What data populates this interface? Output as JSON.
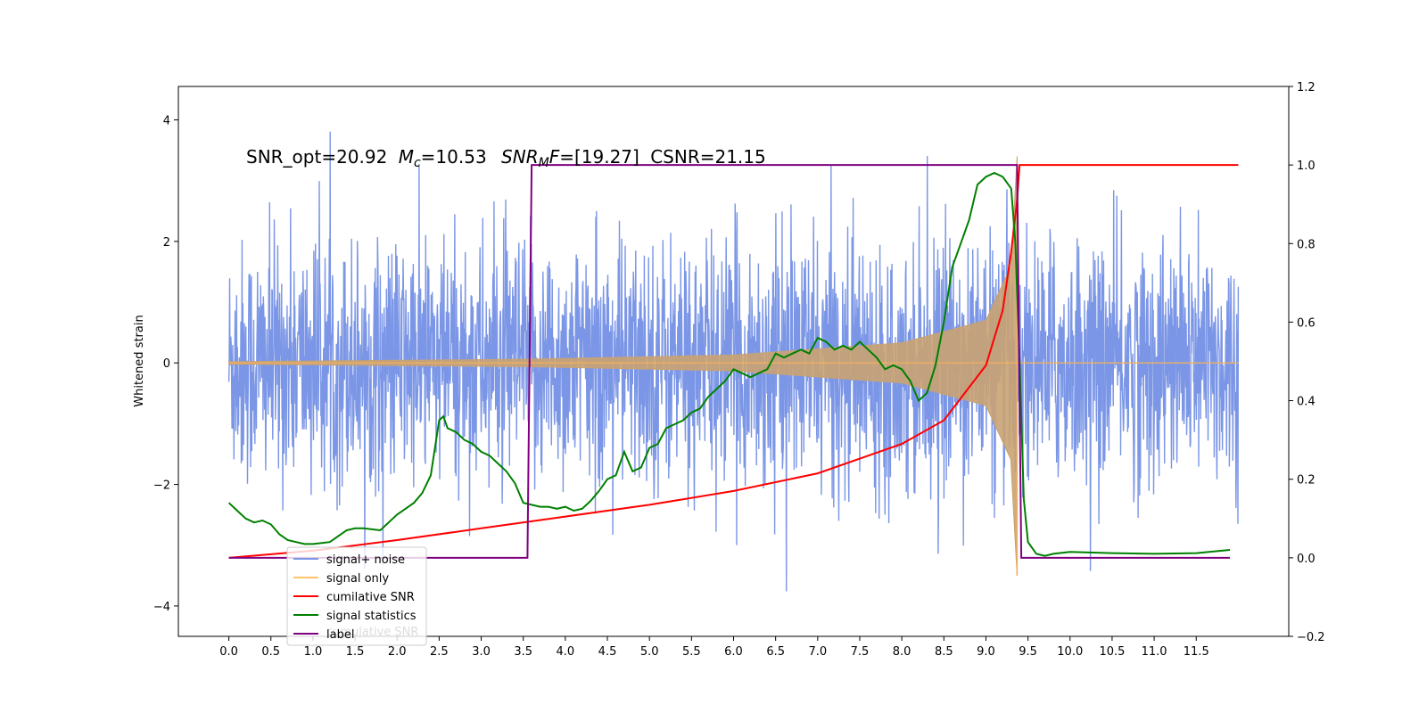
{
  "chart_data": {
    "type": "line",
    "title": "",
    "annotation": "SNR_opt=20.92 Mc=10.53  SNR_MF=[19.27] CSNR=21.15",
    "annotation_parts": {
      "snr_opt": "SNR_opt=20.92",
      "mc_symbol": "M",
      "mc_sub": "c",
      "mc_value": "=10.53",
      "snr_symbol": "SNR",
      "snr_sub": "M",
      "snr_f": "F",
      "snr_value": "=[19.27]",
      "csnr": "CSNR=21.15"
    },
    "xlabel": "",
    "ylabel": "Whitened strain",
    "xlim": [
      -0.6,
      12.6
    ],
    "ylim": [
      -4.5,
      4.55
    ],
    "y2lim": [
      -0.2,
      1.2
    ],
    "x_ticks": [
      "0.0",
      "0.5",
      "1.0",
      "1.5",
      "2.0",
      "2.5",
      "3.0",
      "3.5",
      "4.0",
      "4.5",
      "5.0",
      "5.5",
      "6.0",
      "6.5",
      "7.0",
      "7.5",
      "8.0",
      "8.5",
      "9.0",
      "9.5",
      "10.0",
      "10.5",
      "11.0",
      "11.5"
    ],
    "y_ticks": [
      "−4",
      "−2",
      "0",
      "2",
      "4"
    ],
    "y2_ticks": [
      "−0.2",
      "0.0",
      "0.2",
      "0.4",
      "0.6",
      "0.8",
      "1.0",
      "1.2"
    ],
    "grid": false,
    "legend_position": "lower-left",
    "legend": [
      "signal+ noise",
      "signal only",
      "cumilative SNR",
      "signal statistics",
      "label"
    ],
    "legend_ghost_text": "cumulative SNR",
    "series": [
      {
        "name": "signal+ noise",
        "color": "#7b96e6",
        "axis": "left",
        "kind": "noise",
        "x_range": [
          0.0,
          12.0
        ],
        "std": 1.0,
        "peak_max": 4.1,
        "peak_min": -4.1
      },
      {
        "name": "signal only",
        "color": "#c9a272",
        "axis": "left",
        "kind": "chirp",
        "x_range": [
          0.0,
          12.0
        ],
        "merger_x": 9.37,
        "amplitude_at": [
          [
            0.0,
            0.02
          ],
          [
            3.5,
            0.06
          ],
          [
            6.0,
            0.13
          ],
          [
            8.0,
            0.33
          ],
          [
            9.0,
            0.7
          ],
          [
            9.3,
            1.6
          ],
          [
            9.37,
            3.4
          ]
        ]
      },
      {
        "name": "cumilative SNR",
        "color": "#ff0000",
        "axis": "right",
        "x": [
          0.0,
          1.0,
          2.0,
          3.0,
          4.0,
          5.0,
          6.0,
          7.0,
          8.0,
          8.5,
          9.0,
          9.2,
          9.3,
          9.37,
          9.4,
          12.0
        ],
        "y": [
          0.0,
          0.018,
          0.045,
          0.075,
          0.105,
          0.135,
          0.17,
          0.215,
          0.29,
          0.35,
          0.49,
          0.63,
          0.78,
          0.91,
          1.0,
          1.0
        ]
      },
      {
        "name": "signal statistics",
        "color": "#008000",
        "axis": "right",
        "x": [
          0.0,
          0.1,
          0.2,
          0.3,
          0.4,
          0.5,
          0.6,
          0.7,
          0.8,
          0.9,
          1.0,
          1.2,
          1.4,
          1.5,
          1.6,
          1.8,
          1.9,
          2.0,
          2.1,
          2.2,
          2.3,
          2.4,
          2.5,
          2.55,
          2.6,
          2.7,
          2.8,
          2.9,
          3.0,
          3.1,
          3.2,
          3.3,
          3.4,
          3.5,
          3.6,
          3.7,
          3.8,
          3.9,
          4.0,
          4.1,
          4.2,
          4.3,
          4.4,
          4.5,
          4.6,
          4.7,
          4.8,
          4.9,
          5.0,
          5.1,
          5.2,
          5.3,
          5.4,
          5.5,
          5.6,
          5.7,
          5.8,
          5.9,
          6.0,
          6.1,
          6.2,
          6.3,
          6.4,
          6.5,
          6.6,
          6.7,
          6.8,
          6.9,
          7.0,
          7.1,
          7.2,
          7.3,
          7.4,
          7.5,
          7.6,
          7.7,
          7.8,
          7.9,
          8.0,
          8.1,
          8.2,
          8.3,
          8.4,
          8.5,
          8.6,
          8.7,
          8.8,
          8.9,
          9.0,
          9.1,
          9.2,
          9.3,
          9.35,
          9.4,
          9.45,
          9.5,
          9.6,
          9.7,
          9.8,
          10.0,
          10.5,
          11.0,
          11.5,
          11.9
        ],
        "y": [
          0.14,
          0.12,
          0.1,
          0.09,
          0.095,
          0.085,
          0.06,
          0.045,
          0.04,
          0.035,
          0.035,
          0.04,
          0.07,
          0.075,
          0.075,
          0.07,
          0.09,
          0.11,
          0.125,
          0.14,
          0.165,
          0.21,
          0.35,
          0.36,
          0.33,
          0.32,
          0.3,
          0.29,
          0.27,
          0.26,
          0.24,
          0.22,
          0.19,
          0.14,
          0.135,
          0.13,
          0.13,
          0.125,
          0.13,
          0.12,
          0.125,
          0.145,
          0.17,
          0.2,
          0.21,
          0.27,
          0.22,
          0.23,
          0.28,
          0.29,
          0.33,
          0.34,
          0.35,
          0.37,
          0.38,
          0.41,
          0.43,
          0.45,
          0.48,
          0.47,
          0.46,
          0.47,
          0.48,
          0.52,
          0.51,
          0.52,
          0.53,
          0.52,
          0.56,
          0.55,
          0.53,
          0.54,
          0.53,
          0.55,
          0.53,
          0.51,
          0.48,
          0.49,
          0.48,
          0.45,
          0.4,
          0.42,
          0.49,
          0.6,
          0.74,
          0.8,
          0.86,
          0.95,
          0.97,
          0.98,
          0.97,
          0.94,
          0.8,
          0.5,
          0.15,
          0.04,
          0.01,
          0.005,
          0.01,
          0.015,
          0.012,
          0.01,
          0.012,
          0.02
        ]
      },
      {
        "name": "label",
        "color": "#800080",
        "axis": "right",
        "x": [
          0.0,
          3.55,
          3.6,
          9.37,
          9.42,
          11.9
        ],
        "y": [
          0.0,
          0.0,
          1.0,
          1.0,
          0.0,
          0.0
        ]
      }
    ]
  }
}
